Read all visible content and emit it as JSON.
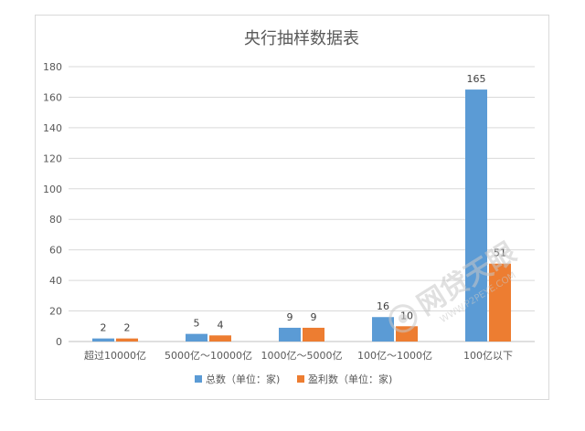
{
  "chart_data": {
    "type": "bar",
    "title": "央行抽样数据表",
    "categories": [
      "超过10000亿",
      "5000亿～10000亿",
      "1000亿～5000亿",
      "100亿～1000亿",
      "100亿以下"
    ],
    "series": [
      {
        "name": "总数（单位：家)",
        "color": "#5b9bd5",
        "values": [
          2,
          5,
          9,
          16,
          165
        ]
      },
      {
        "name": "盈利数（单位：家)",
        "color": "#ed7d31",
        "values": [
          2,
          4,
          9,
          10,
          51
        ]
      }
    ],
    "ylim": [
      0,
      180
    ],
    "yticks": [
      0,
      20,
      40,
      60,
      80,
      100,
      120,
      140,
      160,
      180
    ],
    "grid": true,
    "legend_position": "bottom",
    "xlabel": "",
    "ylabel": ""
  },
  "watermark": {
    "brand": "网贷天眼",
    "url": "WWW.P2PEYE.COM"
  }
}
